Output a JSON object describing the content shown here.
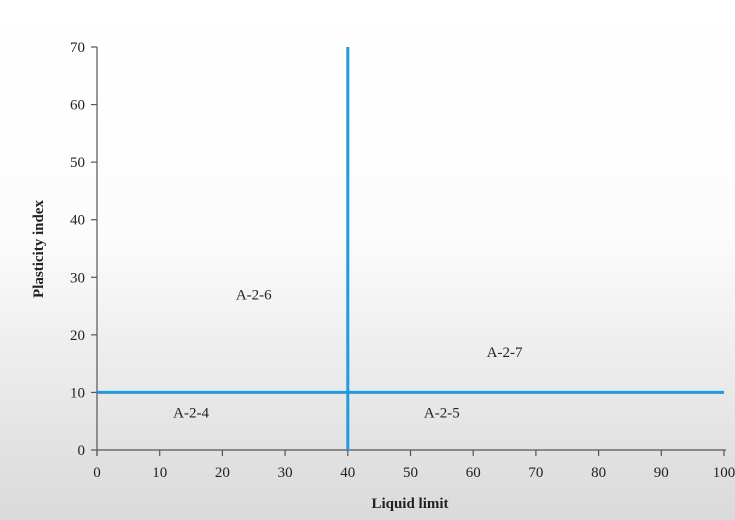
{
  "chart_data": {
    "type": "line",
    "xlabel": "Liquid limit",
    "ylabel": "Plasticity index",
    "xlim": [
      0,
      100
    ],
    "ylim": [
      0,
      70
    ],
    "x_ticks": [
      0,
      10,
      20,
      30,
      40,
      50,
      60,
      70,
      80,
      90,
      100
    ],
    "y_ticks": [
      0,
      10,
      20,
      30,
      40,
      50,
      60,
      70
    ],
    "x_tick_labels": [
      "0",
      "10",
      "20",
      "30",
      "40",
      "50",
      "60",
      "70",
      "80",
      "90",
      "100"
    ],
    "y_tick_labels": [
      "0",
      "10",
      "20",
      "30",
      "40",
      "50",
      "60",
      "70"
    ],
    "grid": false,
    "boundary_color": "#1f9be0",
    "boundaries": [
      {
        "x": [
          40,
          40
        ],
        "y": [
          0,
          70
        ]
      },
      {
        "x": [
          0,
          100
        ],
        "y": [
          10,
          10
        ]
      }
    ],
    "regions": [
      {
        "label": "A-2-6",
        "x": 25,
        "y": 27
      },
      {
        "label": "A-2-7",
        "x": 65,
        "y": 17
      },
      {
        "label": "A-2-4",
        "x": 15,
        "y": 6.5
      },
      {
        "label": "A-2-5",
        "x": 55,
        "y": 6.5
      }
    ]
  }
}
